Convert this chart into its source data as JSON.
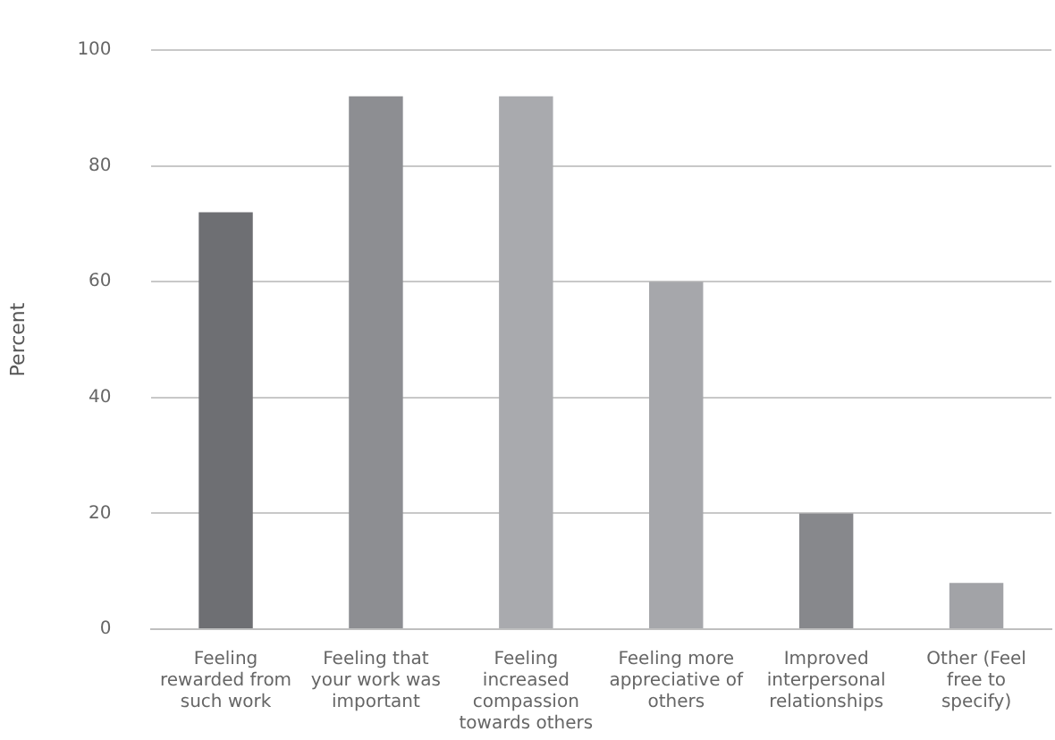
{
  "chart_data": {
    "type": "bar",
    "ylabel": "Percent",
    "categories": [
      "Feeling rewarded from such work",
      "Feeling that your work was important",
      "Feeling increased compassion towards others",
      "Feeling more appreciative of others",
      "Improved interpersonal relationships",
      "Other (Feel free to specify)"
    ],
    "values": [
      72,
      92,
      92,
      60,
      20,
      8
    ],
    "colors": [
      "#6e6f73",
      "#8d8e92",
      "#a9aaae",
      "#a6a7ab",
      "#87888c",
      "#a2a3a7"
    ],
    "ylim": [
      0,
      100
    ],
    "yticks": [
      0,
      20,
      40,
      60,
      80,
      100
    ],
    "grid": "y",
    "legend": false
  }
}
